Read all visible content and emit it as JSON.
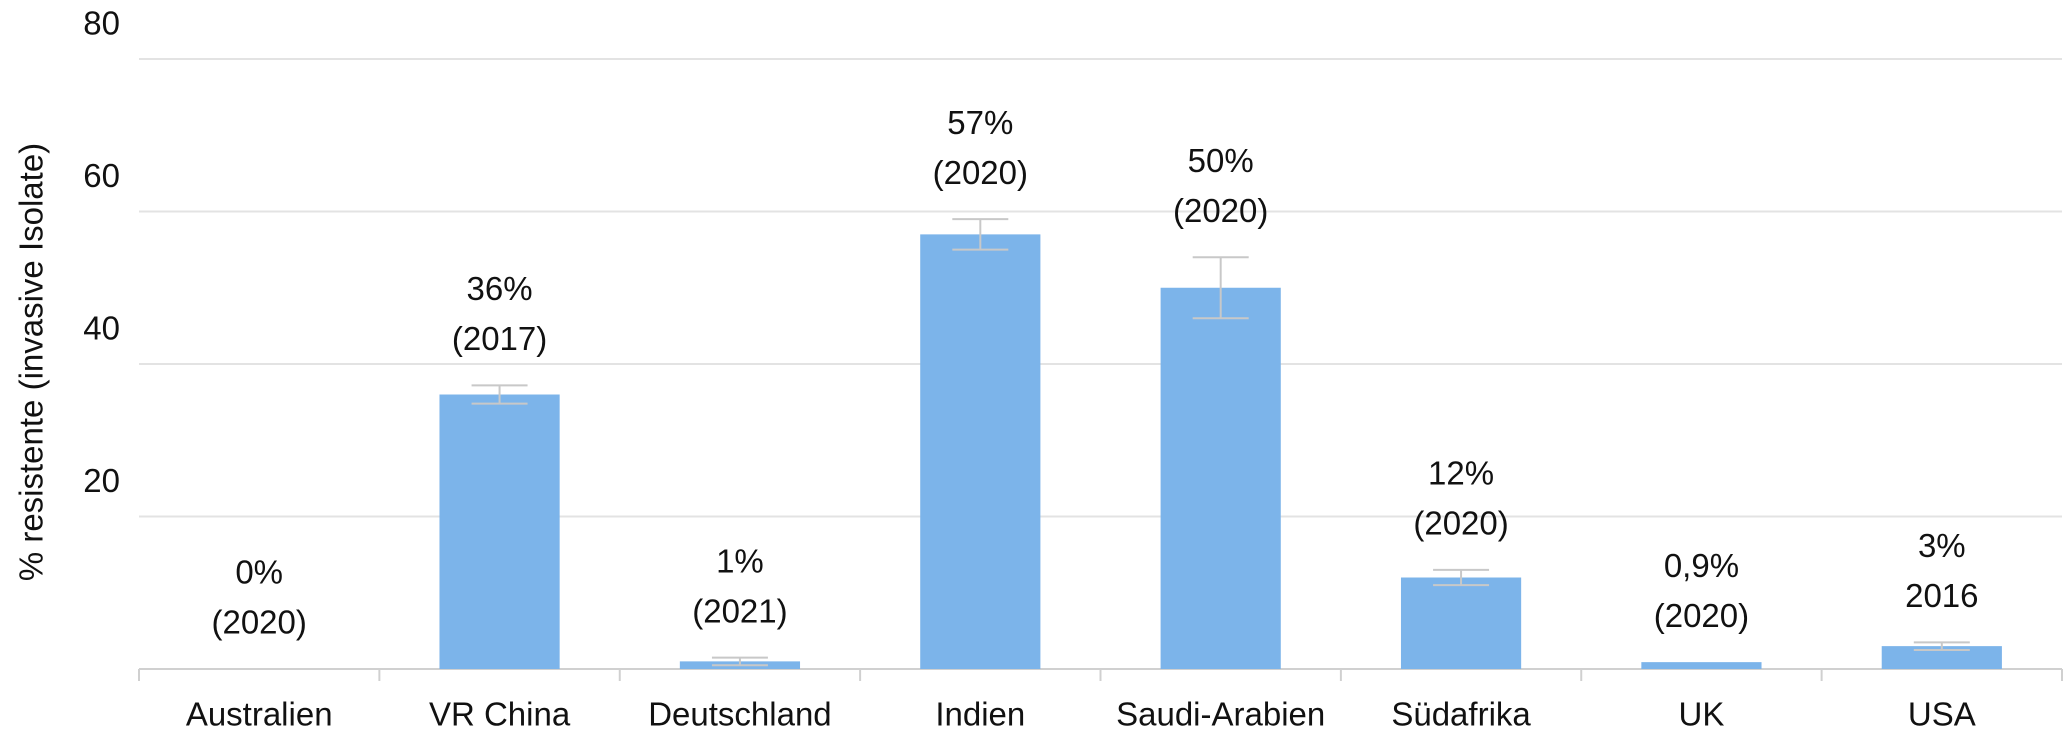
{
  "chart_data": {
    "type": "bar",
    "y_label": "% resistente (invasive Isolate)",
    "categories": [
      "Australien",
      "VR China",
      "Deutschland",
      "Indien",
      "Saudi-Arabien",
      "Südafrika",
      "UK",
      "USA"
    ],
    "values": [
      0,
      36,
      1,
      57,
      50,
      12,
      0.9,
      3
    ],
    "value_labels": [
      "0%",
      "36%",
      "1%",
      "57%",
      "50%",
      "12%",
      "0,9%",
      "3%"
    ],
    "year_labels": [
      "(2020)",
      "(2017)",
      "(2021)",
      "(2020)",
      "(2020)",
      "(2020)",
      "(2020)",
      "2016"
    ],
    "errors": [
      null,
      1.2,
      0.5,
      2,
      4,
      1,
      null,
      0.5
    ],
    "color": "#7cb4ea",
    "error_color": "#c8c8c8",
    "ylim": [
      0,
      80
    ],
    "yticks": [
      20,
      40,
      60,
      80
    ],
    "grid": true
  }
}
